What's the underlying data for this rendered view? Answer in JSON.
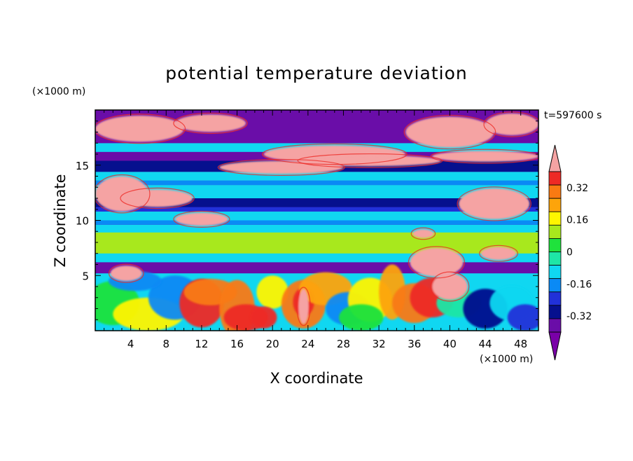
{
  "chart_data": {
    "type": "heatmap",
    "title": "potential temperature deviation",
    "xlabel": "X coordinate",
    "ylabel": "Z coordinate",
    "x_unit": "(×1000 m)",
    "y_unit": "(×1000 m)",
    "time_label": "t=597600 s",
    "xlim": [
      0,
      50
    ],
    "ylim": [
      0,
      20
    ],
    "x_ticks": [
      4,
      8,
      12,
      16,
      20,
      24,
      28,
      32,
      36,
      40,
      44,
      48
    ],
    "y_ticks": [
      5,
      10,
      15
    ],
    "colorbar": {
      "tick_labels": [
        "0.32",
        "0.16",
        "0",
        "-0.16",
        "-0.32"
      ],
      "tick_values": [
        0.32,
        0.16,
        0,
        -0.16,
        -0.32
      ],
      "level_bounds": [
        -0.4,
        0.4
      ],
      "bands_top_to_bottom": [
        "#f5a3a3",
        "#ee2a25",
        "#f97a12",
        "#fda40a",
        "#fff500",
        "#a8e81d",
        "#1fe23c",
        "#1ee6a6",
        "#10d7f1",
        "#0a8af5",
        "#2131d9",
        "#06108e",
        "#6a0da8",
        "#7a00a8"
      ]
    },
    "grid": false,
    "legend": "right"
  }
}
